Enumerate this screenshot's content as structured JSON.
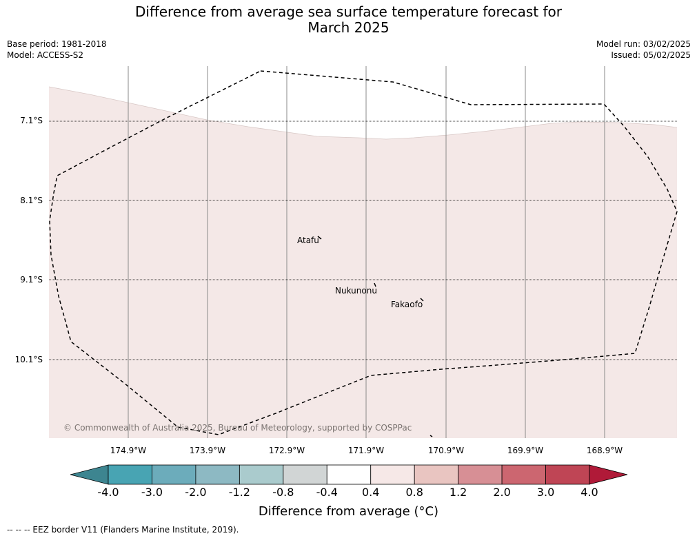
{
  "title": {
    "line1": "Difference from average sea surface temperature forecast for",
    "line2": "March 2025"
  },
  "info": {
    "base_period": "Base period: 1981-2018",
    "model": "Model: ACCESS-S2",
    "model_run": "Model run: 03/02/2025",
    "issued": "Issued: 05/02/2025"
  },
  "map": {
    "latitude_labels": [
      "7.1°S",
      "8.1°S",
      "9.1°S",
      "10.1°S"
    ],
    "longitude_labels": [
      "174.9°W",
      "173.9°W",
      "172.9°W",
      "171.9°W",
      "170.9°W",
      "169.9°W",
      "168.9°W"
    ],
    "places": [
      "Atafu",
      "Nukunonu",
      "Fakaofo"
    ],
    "copyright": "© Commonwealth of Australia 2025, Bureau of Meteorology, supported by COSPPac",
    "colors": {
      "sea_anomaly_0_4_to_0_8": "#f4e8e7",
      "sea_anomaly_minus0_4_to_0_4": "#ffffff",
      "eez_border": "#000000",
      "graticule_meridian": "#8a8a8a"
    }
  },
  "colorbar": {
    "ticks": [
      "-4.0",
      "-3.0",
      "-2.0",
      "-1.2",
      "-0.8",
      "-0.4",
      "0.4",
      "0.8",
      "1.2",
      "2.0",
      "3.0",
      "4.0"
    ],
    "colors": [
      "#3d8590",
      "#48a4b3",
      "#6cacbb",
      "#8db9c3",
      "#aacbcd",
      "#d1d5d5",
      "#ffffff",
      "#f6e8e7",
      "#e9c5c1",
      "#d78f95",
      "#cc6670",
      "#bf4555",
      "#b01a38"
    ],
    "label": "Difference from average (°C)"
  },
  "footer": {
    "eez_legend": "--  --  -- EEZ border V11 (Flanders Marine Institute, 2019)."
  }
}
